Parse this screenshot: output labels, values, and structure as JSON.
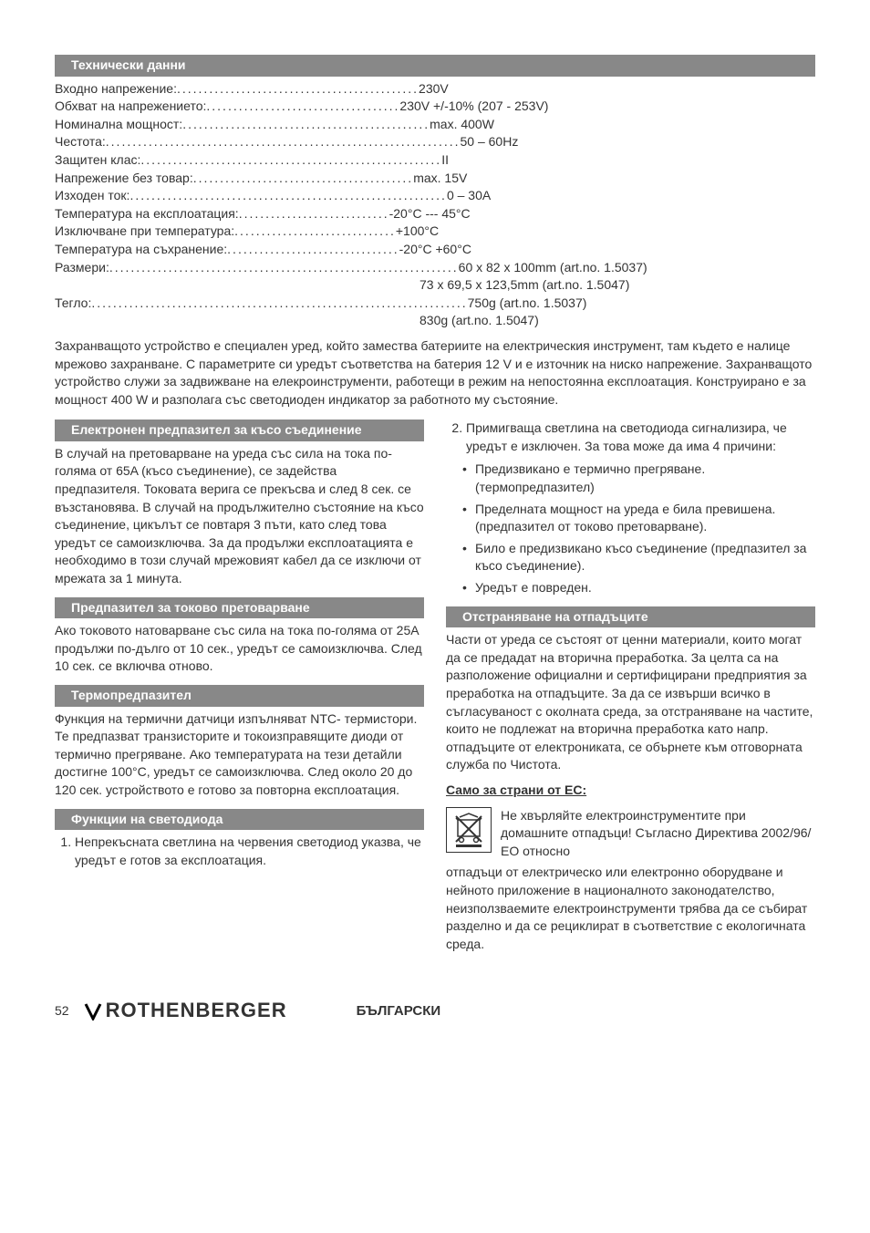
{
  "sections": {
    "tech_data": "Технически данни",
    "fuse": "Електронен предпазител за късо съединение",
    "overload": "Предпазител за токово претоварване",
    "thermal": "Термопредпазител",
    "led": "Функции на светодиода",
    "disposal": "Отстраняване на отпадъците"
  },
  "specs": [
    {
      "label": "Входно напрежение:",
      "dots": " .............................................",
      "value": " 230V"
    },
    {
      "label": "Обхват на напрежението:",
      "dots": " ....................................",
      "value": " 230V +/-10% (207 - 253V)"
    },
    {
      "label": "Номинална мощност:",
      "dots": "..............................................",
      "value": " max. 400W"
    },
    {
      "label": "Честота:",
      "dots": " ..................................................................",
      "value": " 50 – 60Hz"
    },
    {
      "label": "Защитен клас:",
      "dots": " ........................................................",
      "value": " II"
    },
    {
      "label": "Напрежение без товар:",
      "dots": " .........................................",
      "value": " max. 15V"
    },
    {
      "label": "Изходен ток:",
      "dots": " ...........................................................",
      "value": " 0 – 30A"
    },
    {
      "label": "Температура на експлоатация:",
      "dots": " ............................",
      "value": " -20°C --- 45°C"
    },
    {
      "label": "Изключване при температура:",
      "dots": "..............................",
      "value": " +100°C"
    },
    {
      "label": "Температура на съхранение:",
      "dots": " ................................",
      "value": " -20°C +60°C"
    },
    {
      "label": "Размери:",
      "dots": " .................................................................",
      "value": " 60 x 82 x 100mm (art.no. 1.5037)"
    },
    {
      "label": "",
      "dots": "",
      "value": "73 x 69,5 x 123,5mm (art.no. 1.5047)",
      "indent": true
    },
    {
      "label": "Тегло:",
      "dots": " ......................................................................",
      "value": " 750g (art.no. 1.5037)"
    },
    {
      "label": "",
      "dots": "",
      "value": "830g (art.no. 1.5047)",
      "indent": true
    }
  ],
  "description": "Захранващото устройство е специален уред, който замества батериите на електрическия инструмент, там където е налице мрежово захранване. С параметрите си  уредът  съответства на батерия 12 V и е източник на ниско напрежение. Захранващото устройство служи за задвижване на елекроинструменти, работещи в режим на непостоянна експлоатация. Конструирано е за мощност 400 W и разполага със светодиоден индикатор за работното му състояние.",
  "fuse_text": "В случай на претоварване на уреда със сила на тока по-голяма от 65A (късо съединение), се задейства предпазителя. Токовата верига се прекъсва и след 8 сек. се възстановява. В случай на продължително състояние на късо съединение, цикълът се повтаря 3 пъти, като след това уредът се самоизключва. За да продължи експлоатацията е необходимо в този случай мрежовият кабел да се изключи от мрежата за 1 минута.",
  "overload_text": "Ако токовото натоварване със сила на тока по-голяма  от 25A продължи по-дълго от 10 сек., уредът се самоизключва. След 10 сек. се включва отново.",
  "thermal_text": "Функция на термични датчици изпълняват NTC- термистори. Те предпазват транзисторите и токоизправящите диоди от термично прегряване. Ако температурата на тези детайли достигне 100°C,  уредът се самоизключва. След около 20 до 120 сек. устройството е готово за повторна експлоатация.",
  "led_items": [
    "Непрекъсната светлина на червения светодиод указва, че уредът е готов за експлоатация.",
    "Примигваща светлина на светодиода сигнализира, че уредът е изключен. За това може да има 4 причини:"
  ],
  "led_bullets": [
    "Предизвикано е термично прегряване. (термопредпазител)",
    "Пределната мощност на уреда е била превишена. (предпазител от токово претоварване).",
    "Било е предизвикано късо съединение (предпазител за късо съединение).",
    "Уредът е повреден."
  ],
  "disposal_text": "Части от уреда се състоят от ценни материали, които могат да се предадат на вторична преработка. За целта са на разположение официални и сертифицирани предприятия за преработка на отпадъците. За да се извърши всичко в съгласуваност с околната среда, за отстраняване на частите, които не подлежат на вторична преработка като напр. отпадъците от електрониката, се обърнете към отговорната служба по Чистота.",
  "eu_heading": "Само за страни от ЕС:",
  "eu_icon_text": "Не хвърляйте електроинструментите при домашните отпадъци! Съгласно Директива 2002/96/ЕО относно",
  "eu_rest": "отпадъци от електрическо или електронно оборудване и нейното приложение в националното законодателство, неизползваемите електроинструменти трябва да се събират разделно и да се рециклират в съответствие с екологичната среда.",
  "footer": {
    "page": "52",
    "brand": "ROTHENBERGER",
    "lang": "БЪЛГАРСКИ"
  }
}
